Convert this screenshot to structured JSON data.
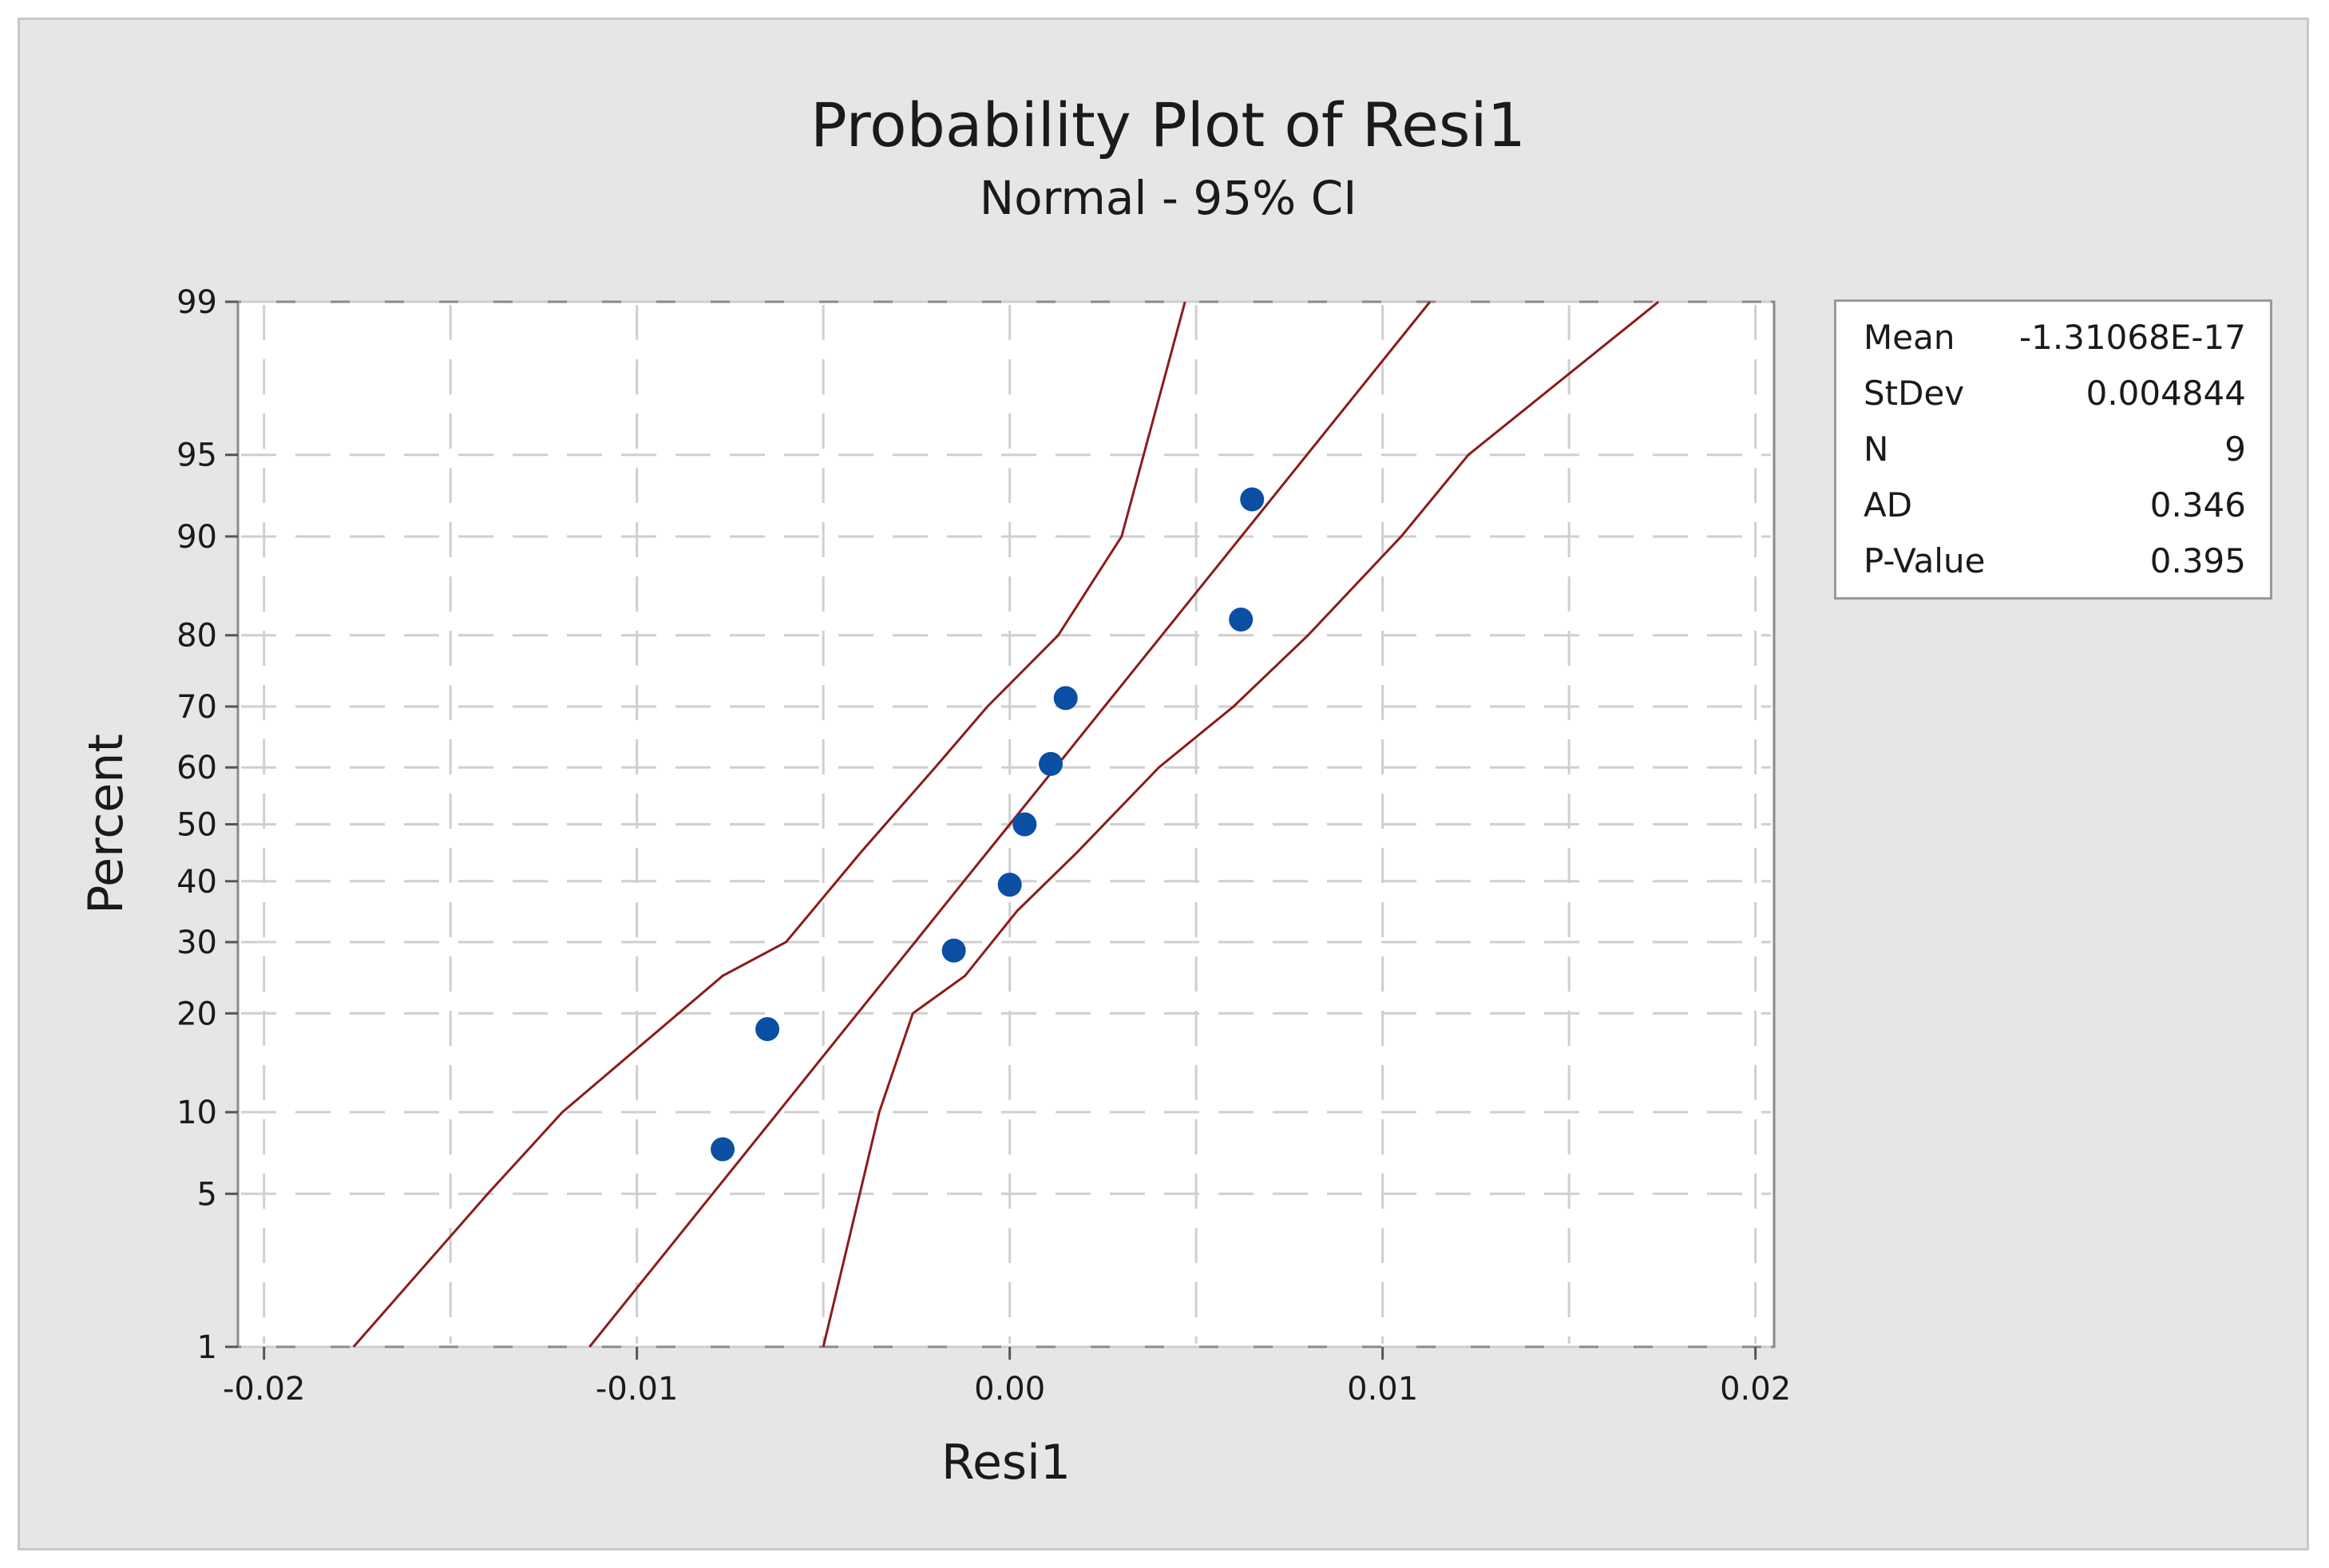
{
  "chart_data": {
    "type": "scatter",
    "title": "Probability Plot of Resi1",
    "subtitle": "Normal - 95% CI",
    "xlabel": "Resi1",
    "ylabel": "Percent",
    "xlim": [
      -0.0207,
      0.0205
    ],
    "ylim": [
      1,
      99
    ],
    "y_scale": "normal-probability",
    "grid": true,
    "x_ticks": [
      {
        "value": -0.02,
        "label": "-0.02"
      },
      {
        "value": -0.01,
        "label": "-0.01"
      },
      {
        "value": 0.0,
        "label": "0.00"
      },
      {
        "value": 0.01,
        "label": "0.01"
      },
      {
        "value": 0.02,
        "label": "0.02"
      }
    ],
    "y_ticks": [
      {
        "value": 1,
        "label": "1"
      },
      {
        "value": 5,
        "label": "5"
      },
      {
        "value": 10,
        "label": "10"
      },
      {
        "value": 20,
        "label": "20"
      },
      {
        "value": 30,
        "label": "30"
      },
      {
        "value": 40,
        "label": "40"
      },
      {
        "value": 50,
        "label": "50"
      },
      {
        "value": 60,
        "label": "60"
      },
      {
        "value": 70,
        "label": "70"
      },
      {
        "value": 80,
        "label": "80"
      },
      {
        "value": 90,
        "label": "90"
      },
      {
        "value": 95,
        "label": "95"
      },
      {
        "value": 99,
        "label": "99"
      }
    ],
    "points": [
      {
        "x": -0.0077,
        "y": 7.4
      },
      {
        "x": -0.0065,
        "y": 18.1
      },
      {
        "x": -0.0015,
        "y": 28.7
      },
      {
        "x": 0.0,
        "y": 39.4
      },
      {
        "x": 0.0004,
        "y": 50.0
      },
      {
        "x": 0.0011,
        "y": 60.6
      },
      {
        "x": 0.0015,
        "y": 71.3
      },
      {
        "x": 0.0062,
        "y": 81.9
      },
      {
        "x": 0.0065,
        "y": 92.6
      }
    ],
    "fit": {
      "mean": -1.31068e-17,
      "stdev": 0.004844
    },
    "ci_lines": [
      {
        "name": "lower",
        "points": [
          [
            -0.0176,
            1
          ],
          [
            -0.014,
            5
          ],
          [
            -0.012,
            10
          ],
          [
            -0.0077,
            25
          ],
          [
            -0.006,
            30
          ],
          [
            -0.004,
            45
          ],
          [
            -0.002,
            60
          ],
          [
            -0.0006,
            70
          ],
          [
            0.0013,
            80
          ],
          [
            0.003,
            90
          ],
          [
            0.0047,
            99
          ]
        ]
      },
      {
        "name": "fit",
        "points": [
          [
            -0.01127,
            1
          ],
          [
            -0.00797,
            5
          ],
          [
            -0.00621,
            10
          ],
          [
            -0.00408,
            20
          ],
          [
            -0.00254,
            30
          ],
          [
            -0.00123,
            40
          ],
          [
            0.0,
            50
          ],
          [
            0.00123,
            60
          ],
          [
            0.00254,
            70
          ],
          [
            0.00408,
            80
          ],
          [
            0.00621,
            90
          ],
          [
            0.00797,
            95
          ],
          [
            0.01127,
            99
          ]
        ]
      },
      {
        "name": "upper",
        "points": [
          [
            -0.005,
            1
          ],
          [
            -0.0035,
            10
          ],
          [
            -0.0026,
            20
          ],
          [
            -0.0012,
            25
          ],
          [
            0.0002,
            35
          ],
          [
            0.0018,
            45
          ],
          [
            0.004,
            60
          ],
          [
            0.006,
            70
          ],
          [
            0.008,
            80
          ],
          [
            0.0105,
            90
          ],
          [
            0.0123,
            95
          ],
          [
            0.0174,
            99
          ]
        ]
      }
    ],
    "colors": {
      "points": "#0a4fa3",
      "lines": "#8b1c1c",
      "grid": "#cfcfcf",
      "frame_bg": "#e6e6e6",
      "plot_bg": "#ffffff"
    }
  },
  "stats": [
    {
      "label": "Mean",
      "value": "-1.31068E-17"
    },
    {
      "label": "StDev",
      "value": "0.004844"
    },
    {
      "label": "N",
      "value": "9"
    },
    {
      "label": "AD",
      "value": "0.346"
    },
    {
      "label": "P-Value",
      "value": "0.395"
    }
  ]
}
